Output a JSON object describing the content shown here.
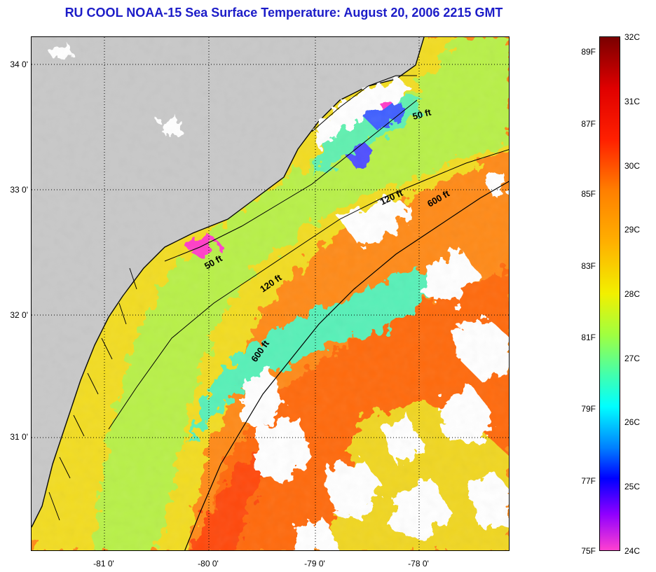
{
  "title": "RU COOL  NOAA-15  Sea Surface Temperature:  August 20, 2006 2215 GMT",
  "latitude_labels": [
    "34 0'",
    "33 0'",
    "32 0'",
    "31 0'"
  ],
  "longitude_labels": [
    "-81 0'",
    "-80 0'",
    "-79 0'",
    "-78 0'"
  ],
  "depth_contours": {
    "nearshore_50": "50 ft",
    "north_50": "50 ft",
    "mid_120": "120 ft",
    "north_120": "120 ft",
    "south_600": "600 ft",
    "north_600": "600 ft"
  },
  "colorbar": {
    "fahrenheit": [
      "89F",
      "87F",
      "85F",
      "83F",
      "81F",
      "79F",
      "77F",
      "75F"
    ],
    "celsius": [
      "32C",
      "31C",
      "30C",
      "29C",
      "28C",
      "27C",
      "26C",
      "25C",
      "24C"
    ]
  },
  "colors": {
    "title": "#1c1cc8",
    "land": "#c8c8c8",
    "clouds": "#ffffff",
    "warm_offshore": "#ff7a10",
    "shelf_yellow": "#f0e020",
    "nearshore_green": "#a8f050",
    "cool_cyan": "#40f0c8"
  }
}
